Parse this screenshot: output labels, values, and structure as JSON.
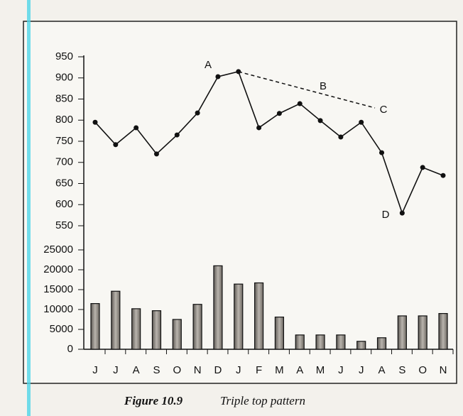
{
  "chart_data": [
    {
      "type": "line",
      "categories": [
        "J",
        "J",
        "A",
        "S",
        "O",
        "N",
        "D",
        "J",
        "F",
        "M",
        "A",
        "M",
        "J",
        "J",
        "A",
        "S",
        "O",
        "N"
      ],
      "values": [
        795,
        742,
        782,
        720,
        765,
        817,
        903,
        915,
        782,
        816,
        839,
        799,
        760,
        795,
        723,
        580,
        688,
        669
      ],
      "color": "#111111",
      "ylim": [
        550,
        950
      ],
      "yticks": [
        550,
        600,
        650,
        700,
        750,
        800,
        850,
        900,
        950
      ],
      "annotations": [
        "A",
        "B",
        "C",
        "D"
      ]
    },
    {
      "type": "bar",
      "categories": [
        "J",
        "J",
        "A",
        "S",
        "O",
        "N",
        "D",
        "J",
        "F",
        "M",
        "A",
        "M",
        "J",
        "J",
        "A",
        "S",
        "O",
        "N"
      ],
      "values": [
        11500,
        14600,
        10200,
        9700,
        7500,
        11300,
        21000,
        16400,
        16700,
        8100,
        3600,
        3600,
        3600,
        2000,
        2900,
        8400,
        8400,
        9000
      ],
      "color": "#8f8a84",
      "ylim": [
        0,
        25000
      ],
      "yticks": [
        0,
        5000,
        10000,
        15000,
        20000,
        25000
      ]
    }
  ],
  "figure": {
    "label": "Figure 10.9",
    "caption": "Triple top pattern"
  }
}
